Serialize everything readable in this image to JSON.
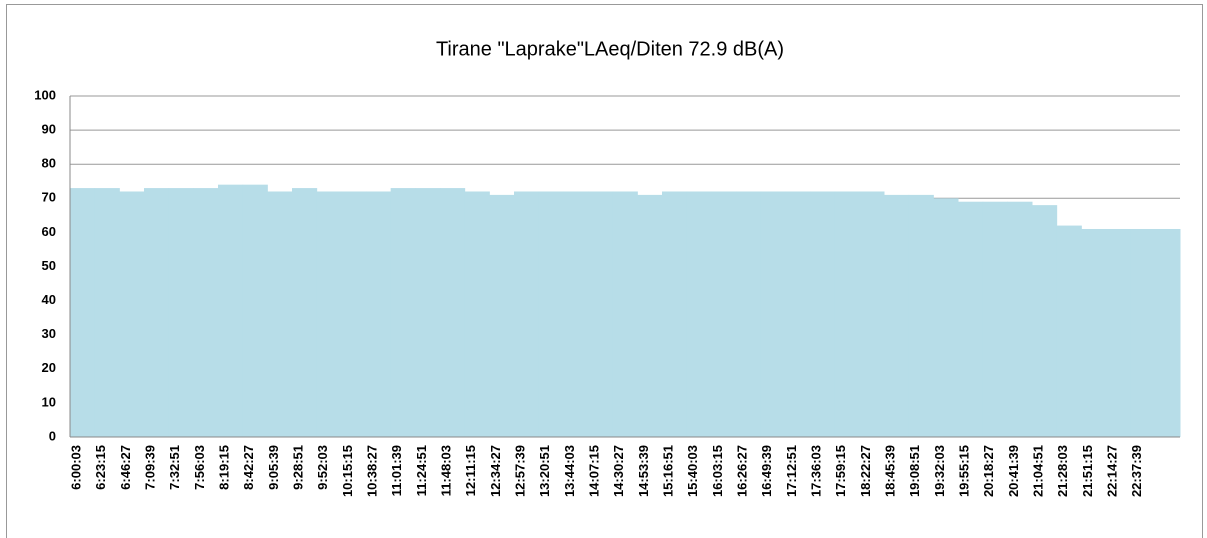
{
  "chart_data": {
    "type": "bar",
    "title": "Tirane \"Laprake\"LAeq/Diten 72.9 dB(A)",
    "categories": [
      "6:00:03",
      "6:23:15",
      "6:46:27",
      "7:09:39",
      "7:32:51",
      "7:56:03",
      "8:19:15",
      "8:42:27",
      "9:05:39",
      "9:28:51",
      "9:52:03",
      "10:15:15",
      "10:38:27",
      "11:01:39",
      "11:24:51",
      "11:48:03",
      "12:11:15",
      "12:34:27",
      "12:57:39",
      "13:20:51",
      "13:44:03",
      "14:07:15",
      "14:30:27",
      "14:53:39",
      "15:16:51",
      "15:40:03",
      "16:03:15",
      "16:26:27",
      "16:49:39",
      "17:12:51",
      "17:36:03",
      "17:59:15",
      "18:22:27",
      "18:45:39",
      "19:08:51",
      "19:32:03",
      "19:55:15",
      "20:18:27",
      "20:41:39",
      "21:04:51",
      "21:28:03",
      "21:51:15",
      "22:14:27",
      "22:37:39",
      null
    ],
    "values": [
      73,
      73,
      72,
      73,
      73,
      73,
      74,
      74,
      72,
      73,
      72,
      72,
      72,
      73,
      73,
      73,
      72,
      71,
      72,
      72,
      72,
      72,
      72,
      71,
      72,
      72,
      72,
      72,
      72,
      72,
      72,
      72,
      72,
      71,
      71,
      70,
      69,
      69,
      69,
      68,
      62,
      61,
      61,
      61,
      61
    ],
    "color": "#b7dde8",
    "ylim": [
      0,
      100
    ],
    "yticks": [
      0,
      10,
      20,
      30,
      40,
      50,
      60,
      70,
      80,
      90,
      100
    ],
    "grid": true
  }
}
